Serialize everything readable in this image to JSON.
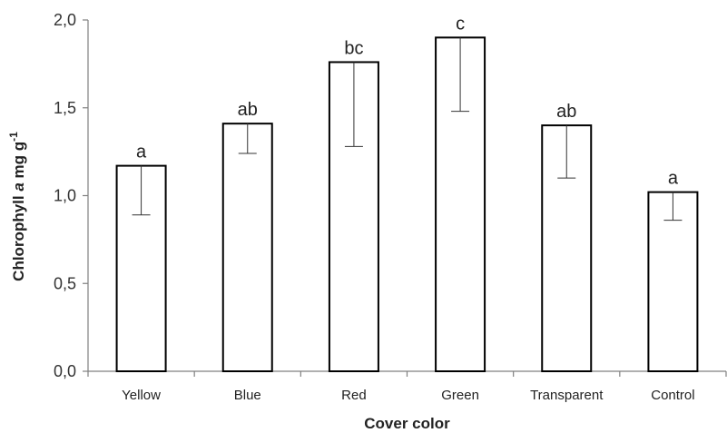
{
  "chart_data": {
    "type": "bar",
    "title": "",
    "xlabel": "Cover color",
    "ylabel": {
      "prefix": "Chlorophyll ",
      "italic": "a",
      "unit": " mg g",
      "superscript": "-1"
    },
    "ylim": [
      0,
      2.0
    ],
    "yticks": [
      "0,0",
      "0,5",
      "1,0",
      "1,5",
      "2,0"
    ],
    "ytick_values": [
      0,
      0.5,
      1.0,
      1.5,
      2.0
    ],
    "grid": false,
    "categories": [
      "Yellow",
      "Blue",
      "Red",
      "Green",
      "Transparent",
      "Control"
    ],
    "values": [
      1.17,
      1.41,
      1.76,
      1.9,
      1.4,
      1.02
    ],
    "error_low": [
      0.89,
      1.24,
      1.28,
      1.48,
      1.1,
      0.86
    ],
    "error_high": [
      1.17,
      1.41,
      1.76,
      1.9,
      1.4,
      1.02
    ],
    "significance": [
      "a",
      "ab",
      "bc",
      "c",
      "ab",
      "a"
    ]
  }
}
